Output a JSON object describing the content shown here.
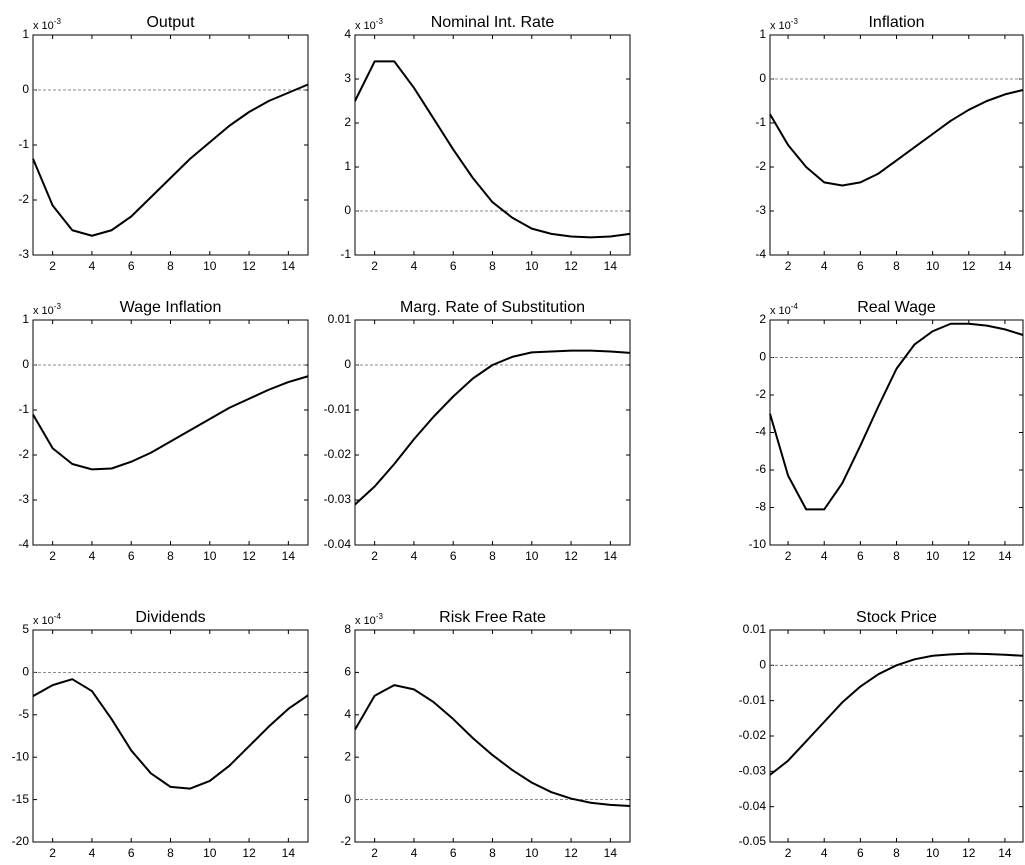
{
  "chart_data": [
    {
      "type": "line",
      "title": "Output",
      "scale_label": {
        "base": "x 10",
        "power": "-3"
      },
      "x": [
        1,
        2,
        3,
        4,
        5,
        6,
        7,
        8,
        9,
        10,
        11,
        12,
        13,
        14,
        15
      ],
      "values": [
        -1.25,
        -2.1,
        -2.55,
        -2.65,
        -2.55,
        -2.3,
        -1.95,
        -1.6,
        -1.25,
        -0.95,
        -0.65,
        -0.4,
        -0.2,
        -0.05,
        0.1
      ],
      "color": "#000000",
      "xlim": [
        1,
        15
      ],
      "xticks": [
        2,
        4,
        6,
        8,
        10,
        12,
        14
      ],
      "ylim": [
        -3,
        1
      ],
      "yticks": [
        -3,
        -2,
        -1,
        0,
        1
      ],
      "zero_line": true
    },
    {
      "type": "line",
      "title": "Nominal Int. Rate",
      "scale_label": {
        "base": "x 10",
        "power": "-3"
      },
      "x": [
        1,
        2,
        3,
        4,
        5,
        6,
        7,
        8,
        9,
        10,
        11,
        12,
        13,
        14,
        15
      ],
      "values": [
        2.5,
        3.4,
        3.4,
        2.8,
        2.1,
        1.4,
        0.75,
        0.2,
        -0.15,
        -0.4,
        -0.52,
        -0.58,
        -0.6,
        -0.58,
        -0.52
      ],
      "color": "#000000",
      "xlim": [
        1,
        15
      ],
      "xticks": [
        2,
        4,
        6,
        8,
        10,
        12,
        14
      ],
      "ylim": [
        -1,
        4
      ],
      "yticks": [
        -1,
        0,
        1,
        2,
        3,
        4
      ],
      "zero_line": true
    },
    {
      "type": "line",
      "title": "Inflation",
      "scale_label": {
        "base": "x 10",
        "power": "-3"
      },
      "x": [
        1,
        2,
        3,
        4,
        5,
        6,
        7,
        8,
        9,
        10,
        11,
        12,
        13,
        14,
        15
      ],
      "values": [
        -0.8,
        -1.5,
        -2.0,
        -2.35,
        -2.42,
        -2.35,
        -2.15,
        -1.85,
        -1.55,
        -1.25,
        -0.95,
        -0.7,
        -0.5,
        -0.35,
        -0.25
      ],
      "color": "#000000",
      "xlim": [
        1,
        15
      ],
      "xticks": [
        2,
        4,
        6,
        8,
        10,
        12,
        14
      ],
      "ylim": [
        -4,
        1
      ],
      "yticks": [
        -4,
        -3,
        -2,
        -1,
        0,
        1
      ],
      "zero_line": true
    },
    {
      "type": "line",
      "title": "Wage Inflation",
      "scale_label": {
        "base": "x 10",
        "power": "-3"
      },
      "x": [
        1,
        2,
        3,
        4,
        5,
        6,
        7,
        8,
        9,
        10,
        11,
        12,
        13,
        14,
        15
      ],
      "values": [
        -1.1,
        -1.85,
        -2.2,
        -2.32,
        -2.3,
        -2.15,
        -1.95,
        -1.7,
        -1.45,
        -1.2,
        -0.95,
        -0.75,
        -0.55,
        -0.38,
        -0.25
      ],
      "color": "#000000",
      "xlim": [
        1,
        15
      ],
      "xticks": [
        2,
        4,
        6,
        8,
        10,
        12,
        14
      ],
      "ylim": [
        -4,
        1
      ],
      "yticks": [
        -4,
        -3,
        -2,
        -1,
        0,
        1
      ],
      "zero_line": true
    },
    {
      "type": "line",
      "title": "Marg. Rate of Substitution",
      "x": [
        1,
        2,
        3,
        4,
        5,
        6,
        7,
        8,
        9,
        10,
        11,
        12,
        13,
        14,
        15
      ],
      "values": [
        -0.031,
        -0.027,
        -0.022,
        -0.0165,
        -0.0115,
        -0.007,
        -0.003,
        0,
        0.0018,
        0.0028,
        0.003,
        0.0032,
        0.0032,
        0.003,
        0.0027
      ],
      "color": "#000000",
      "xlim": [
        1,
        15
      ],
      "xticks": [
        2,
        4,
        6,
        8,
        10,
        12,
        14
      ],
      "ylim": [
        -0.04,
        0.01
      ],
      "yticks": [
        -0.04,
        -0.03,
        -0.02,
        -0.01,
        0,
        0.01
      ],
      "zero_line": true
    },
    {
      "type": "line",
      "title": "Real Wage",
      "scale_label": {
        "base": "x 10",
        "power": "-4"
      },
      "x": [
        1,
        2,
        3,
        4,
        5,
        6,
        7,
        8,
        9,
        10,
        11,
        12,
        13,
        14,
        15
      ],
      "values": [
        -3,
        -6.3,
        -8.1,
        -8.1,
        -6.7,
        -4.7,
        -2.6,
        -0.6,
        0.7,
        1.4,
        1.8,
        1.8,
        1.7,
        1.5,
        1.2
      ],
      "color": "#000000",
      "xlim": [
        1,
        15
      ],
      "xticks": [
        2,
        4,
        6,
        8,
        10,
        12,
        14
      ],
      "ylim": [
        -10,
        2
      ],
      "yticks": [
        -10,
        -8,
        -6,
        -4,
        -2,
        0,
        2
      ],
      "zero_line": true
    },
    {
      "type": "line",
      "title": "Dividends",
      "scale_label": {
        "base": "x 10",
        "power": "-4"
      },
      "x": [
        1,
        2,
        3,
        4,
        5,
        6,
        7,
        8,
        9,
        10,
        11,
        12,
        13,
        14,
        15
      ],
      "values": [
        -2.8,
        -1.5,
        -0.8,
        -2.2,
        -5.5,
        -9.2,
        -11.9,
        -13.5,
        -13.7,
        -12.8,
        -11,
        -8.7,
        -6.4,
        -4.3,
        -2.7
      ],
      "color": "#000000",
      "xlim": [
        1,
        15
      ],
      "xticks": [
        2,
        4,
        6,
        8,
        10,
        12,
        14
      ],
      "ylim": [
        -20,
        5
      ],
      "yticks": [
        -20,
        -15,
        -10,
        -5,
        0,
        5
      ],
      "zero_line": true
    },
    {
      "type": "line",
      "title": "Risk Free Rate",
      "scale_label": {
        "base": "x 10",
        "power": "-3"
      },
      "x": [
        1,
        2,
        3,
        4,
        5,
        6,
        7,
        8,
        9,
        10,
        11,
        12,
        13,
        14,
        15
      ],
      "values": [
        3.3,
        4.9,
        5.4,
        5.2,
        4.6,
        3.8,
        2.9,
        2.1,
        1.4,
        0.8,
        0.35,
        0.05,
        -0.15,
        -0.25,
        -0.3
      ],
      "color": "#000000",
      "xlim": [
        1,
        15
      ],
      "xticks": [
        2,
        4,
        6,
        8,
        10,
        12,
        14
      ],
      "ylim": [
        -2,
        8
      ],
      "yticks": [
        -2,
        0,
        2,
        4,
        6,
        8
      ],
      "zero_line": true
    },
    {
      "type": "line",
      "title": "Stock Price",
      "x": [
        1,
        2,
        3,
        4,
        5,
        6,
        7,
        8,
        9,
        10,
        11,
        12,
        13,
        14,
        15
      ],
      "values": [
        -0.031,
        -0.027,
        -0.0215,
        -0.016,
        -0.0105,
        -0.006,
        -0.0025,
        0,
        0.0017,
        0.0027,
        0.0031,
        0.0033,
        0.0032,
        0.003,
        0.0027
      ],
      "color": "#000000",
      "xlim": [
        1,
        15
      ],
      "xticks": [
        2,
        4,
        6,
        8,
        10,
        12,
        14
      ],
      "ylim": [
        -0.05,
        0.01
      ],
      "yticks": [
        -0.05,
        -0.04,
        -0.03,
        -0.02,
        -0.01,
        0,
        0.01
      ],
      "zero_line": true
    }
  ]
}
